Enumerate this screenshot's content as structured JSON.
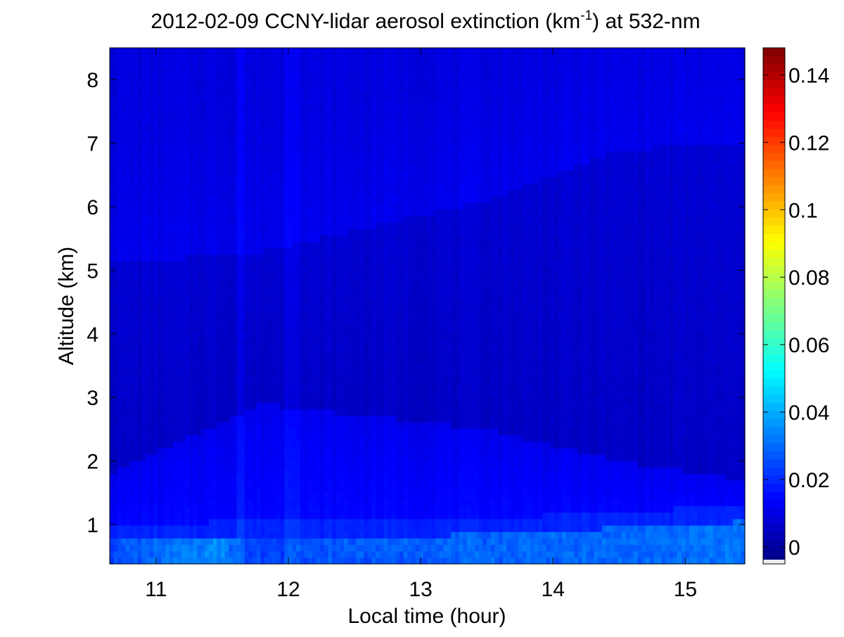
{
  "chart_data": {
    "type": "heatmap",
    "title": "2012-02-09 CCNY-lidar aerosol extinction (km",
    "title_superscript": "-1",
    "title_suffix": ") at 532-nm",
    "xlabel": "Local time (hour)",
    "ylabel": "Altitude (km)",
    "xlim": [
      10.65,
      15.45
    ],
    "ylim": [
      0.38,
      8.5
    ],
    "x_ticks": [
      11,
      12,
      13,
      14,
      15
    ],
    "x_tick_labels": [
      "11",
      "12",
      "13",
      "14",
      "15"
    ],
    "y_ticks": [
      1,
      2,
      3,
      4,
      5,
      6,
      7,
      8
    ],
    "y_tick_labels": [
      "1",
      "2",
      "3",
      "4",
      "5",
      "6",
      "7",
      "8"
    ],
    "colormap": "jet",
    "colorbar": {
      "clim": [
        -0.005,
        0.148
      ],
      "ticks": [
        0,
        0.02,
        0.04,
        0.06,
        0.08,
        0.1,
        0.12,
        0.14
      ],
      "tick_labels": [
        "0",
        "0.02",
        "0.04",
        "0.06",
        "0.08",
        "0.1",
        "0.12",
        "0.14"
      ]
    },
    "value_field": {
      "background": 0.008,
      "upper_troposphere": 0.01,
      "middle_layer_min": 0.004,
      "residual_layer_top": [
        [
          10.65,
          5.1
        ],
        [
          11.8,
          5.3
        ],
        [
          13.5,
          6.1
        ],
        [
          14.5,
          6.9
        ],
        [
          15.45,
          7.0
        ]
      ],
      "boundary_layer_top": [
        [
          10.65,
          0.75
        ],
        [
          11.6,
          0.8
        ],
        [
          12.5,
          0.8
        ],
        [
          13.5,
          0.85
        ],
        [
          14.5,
          0.95
        ],
        [
          15.45,
          1.05
        ]
      ],
      "boundary_layer_values": [
        [
          10.65,
          0.024
        ],
        [
          11.5,
          0.034
        ],
        [
          11.7,
          0.022
        ],
        [
          12.5,
          0.026
        ],
        [
          13.5,
          0.028
        ],
        [
          14.5,
          0.028
        ],
        [
          15.45,
          0.03
        ]
      ],
      "elevated_aerosol_top": [
        [
          10.65,
          1.8
        ],
        [
          11.8,
          2.9
        ],
        [
          13.5,
          2.5
        ],
        [
          14.5,
          2.0
        ],
        [
          15.45,
          1.7
        ]
      ],
      "elevated_aerosol_value": 0.014,
      "bright_column_times": [
        11.65,
        12.0,
        12.05
      ]
    }
  }
}
